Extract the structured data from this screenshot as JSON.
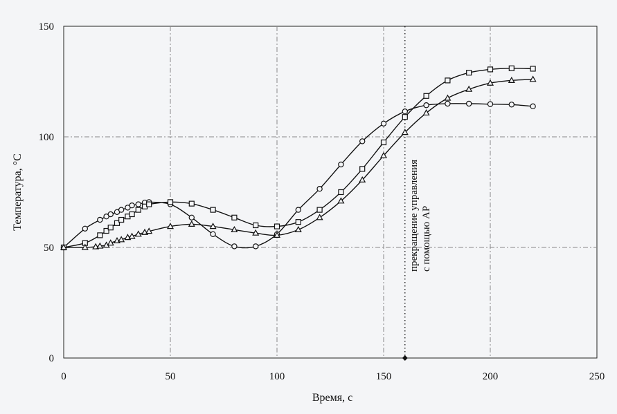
{
  "chart_data": {
    "type": "line",
    "title": "",
    "xlabel": "Время, с",
    "ylabel": "Температура, °С",
    "xlim": [
      0,
      250
    ],
    "ylim": [
      0,
      150
    ],
    "x_ticks": [
      0,
      50,
      100,
      150,
      200,
      250
    ],
    "y_ticks": [
      0,
      50,
      100,
      150
    ],
    "grid": "major, dash-dot",
    "legend": "none",
    "series": [
      {
        "marker": "circle",
        "points": [
          [
            0,
            50
          ],
          [
            10,
            58.5
          ],
          [
            17,
            62.5
          ],
          [
            20,
            64
          ],
          [
            22,
            65
          ],
          [
            25,
            66
          ],
          [
            27,
            67
          ],
          [
            30,
            68
          ],
          [
            32,
            69
          ],
          [
            35,
            69.5
          ],
          [
            38,
            70.3
          ],
          [
            40,
            70.5
          ],
          [
            50,
            69.5
          ],
          [
            60,
            63.5
          ],
          [
            70,
            56
          ],
          [
            80,
            50.5
          ],
          [
            90,
            50.5
          ],
          [
            100,
            56
          ],
          [
            110,
            67
          ],
          [
            120,
            76.5
          ],
          [
            130,
            87.5
          ],
          [
            140,
            98
          ],
          [
            150,
            106
          ],
          [
            160,
            111.5
          ],
          [
            170,
            114.3
          ],
          [
            180,
            115
          ],
          [
            190,
            115
          ],
          [
            200,
            114.8
          ],
          [
            210,
            114.6
          ],
          [
            220,
            113.8
          ]
        ]
      },
      {
        "marker": "square",
        "points": [
          [
            0,
            50
          ],
          [
            10,
            52
          ],
          [
            17,
            55.5
          ],
          [
            20,
            57.5
          ],
          [
            22,
            59
          ],
          [
            25,
            61
          ],
          [
            27,
            62.5
          ],
          [
            30,
            64
          ],
          [
            32,
            65
          ],
          [
            35,
            67
          ],
          [
            38,
            68.5
          ],
          [
            40,
            69.5
          ],
          [
            50,
            70.5
          ],
          [
            60,
            69.8
          ],
          [
            70,
            67
          ],
          [
            80,
            63.5
          ],
          [
            90,
            60
          ],
          [
            100,
            59.5
          ],
          [
            110,
            61.5
          ],
          [
            120,
            67
          ],
          [
            130,
            75
          ],
          [
            140,
            85.5
          ],
          [
            150,
            97.5
          ],
          [
            160,
            109
          ],
          [
            170,
            118.5
          ],
          [
            180,
            125.5
          ],
          [
            190,
            129
          ],
          [
            200,
            130.5
          ],
          [
            210,
            131
          ],
          [
            220,
            130.8
          ]
        ]
      },
      {
        "marker": "triangle",
        "points": [
          [
            0,
            50
          ],
          [
            10,
            50
          ],
          [
            15,
            50.3
          ],
          [
            17,
            50.6
          ],
          [
            20,
            51
          ],
          [
            22,
            52
          ],
          [
            25,
            53
          ],
          [
            27,
            53.5
          ],
          [
            30,
            54.5
          ],
          [
            32,
            55
          ],
          [
            35,
            56
          ],
          [
            38,
            56.8
          ],
          [
            40,
            57.3
          ],
          [
            50,
            59.5
          ],
          [
            60,
            60.5
          ],
          [
            70,
            59.5
          ],
          [
            80,
            58
          ],
          [
            90,
            56.5
          ],
          [
            100,
            55.5
          ],
          [
            110,
            58
          ],
          [
            120,
            63.5
          ],
          [
            130,
            71
          ],
          [
            140,
            80.5
          ],
          [
            150,
            91.5
          ],
          [
            160,
            102
          ],
          [
            170,
            110.8
          ],
          [
            180,
            117.5
          ],
          [
            190,
            121.5
          ],
          [
            200,
            124.3
          ],
          [
            210,
            125.5
          ],
          [
            220,
            126
          ]
        ]
      }
    ],
    "annotations": [
      {
        "type": "vertical_line",
        "x": 160,
        "style": "dotted",
        "text": "прекращение управления с помощью АР"
      }
    ]
  }
}
